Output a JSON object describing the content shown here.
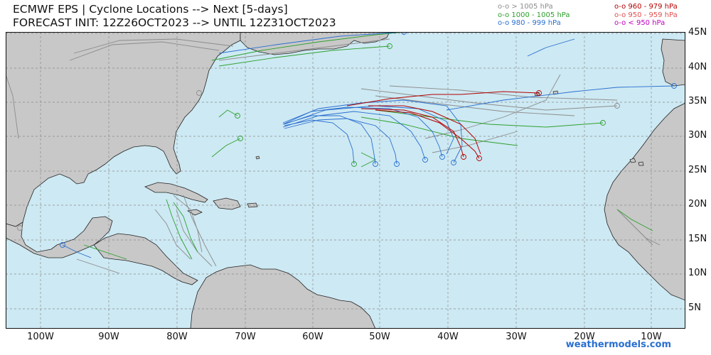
{
  "title": {
    "line1": "ECMWF EPS | Cyclone Locations --> Next [5-days]",
    "line2": "FORECAST INIT: 12Z26OCT2023 --> UNTIL 12Z31OCT2023"
  },
  "legend": {
    "col1": [
      {
        "label": "o-o > 1005 hPa",
        "color": "#8c8c8c"
      },
      {
        "label": "o-o 1000 - 1005 hPa",
        "color": "#2ea02e"
      },
      {
        "label": "o-o 980 - 999 hPa",
        "color": "#2a6fd0"
      }
    ],
    "col2": [
      {
        "label": "o-o 960 - 979 hPa",
        "color": "#b40000"
      },
      {
        "label": "o-o 950 - 959 hPa",
        "color": "#e05050"
      },
      {
        "label": "o-o < 950 hPa",
        "color": "#c000c0"
      }
    ]
  },
  "axes": {
    "lat_labels": [
      "45N",
      "40N",
      "35N",
      "30N",
      "25N",
      "20N",
      "15N",
      "10N",
      "5N"
    ],
    "lon_labels": [
      "100W",
      "90W",
      "80W",
      "70W",
      "60W",
      "50W",
      "40W",
      "30W",
      "20W",
      "10W"
    ]
  },
  "credit": "weathermodels.com",
  "colors": {
    "ocean": "#cde9f3",
    "land": "#c8c8c8",
    "border": "#111111",
    "grid": "#8a8a8a"
  }
}
